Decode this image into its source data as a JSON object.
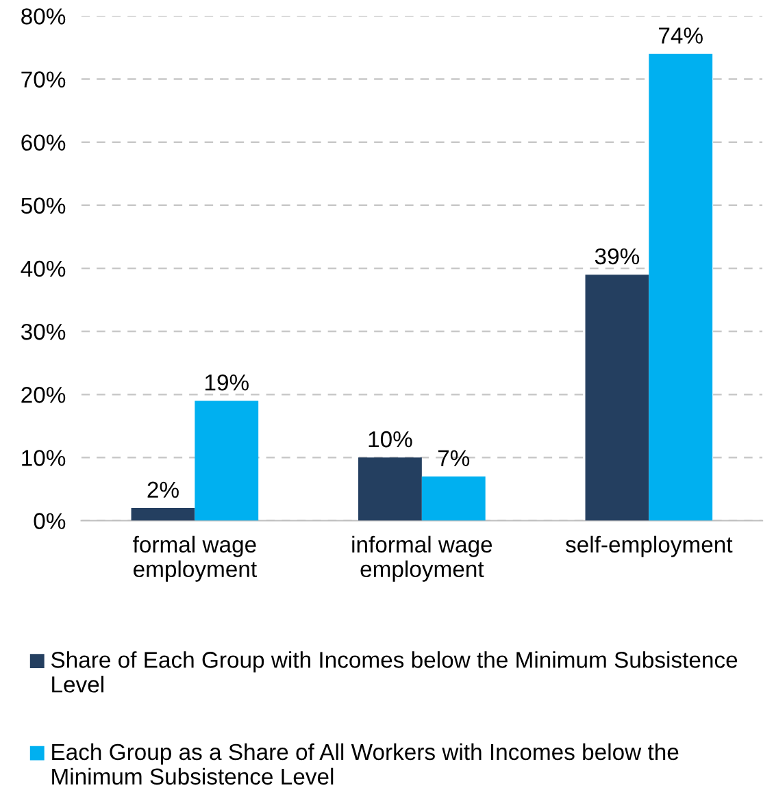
{
  "chart_data": {
    "type": "bar",
    "categories": [
      "formal wage employment",
      "informal wage employment",
      "self-employment"
    ],
    "series": [
      {
        "name": "Share of Each Group with Incomes below the Minimum Subsistence Level",
        "color": "#243f60",
        "values": [
          2,
          10,
          39
        ],
        "value_labels": [
          "2%",
          "10%",
          "39%"
        ]
      },
      {
        "name": "Each Group as a Share of All Workers with Incomes below the Minimum Subsistence Level",
        "color": "#00b0f0",
        "values": [
          19,
          7,
          74
        ],
        "value_labels": [
          "19%",
          "7%",
          "74%"
        ]
      }
    ],
    "ylim": [
      0,
      80
    ],
    "yticks": [
      {
        "value": 0,
        "label": "0%"
      },
      {
        "value": 10,
        "label": "10%"
      },
      {
        "value": 20,
        "label": "20%"
      },
      {
        "value": 30,
        "label": "30%"
      },
      {
        "value": 40,
        "label": "40%"
      },
      {
        "value": 50,
        "label": "50%"
      },
      {
        "value": 60,
        "label": "60%"
      },
      {
        "value": 70,
        "label": "70%"
      },
      {
        "value": 80,
        "label": "80%"
      }
    ],
    "grid": "y",
    "legend": "bottom"
  }
}
